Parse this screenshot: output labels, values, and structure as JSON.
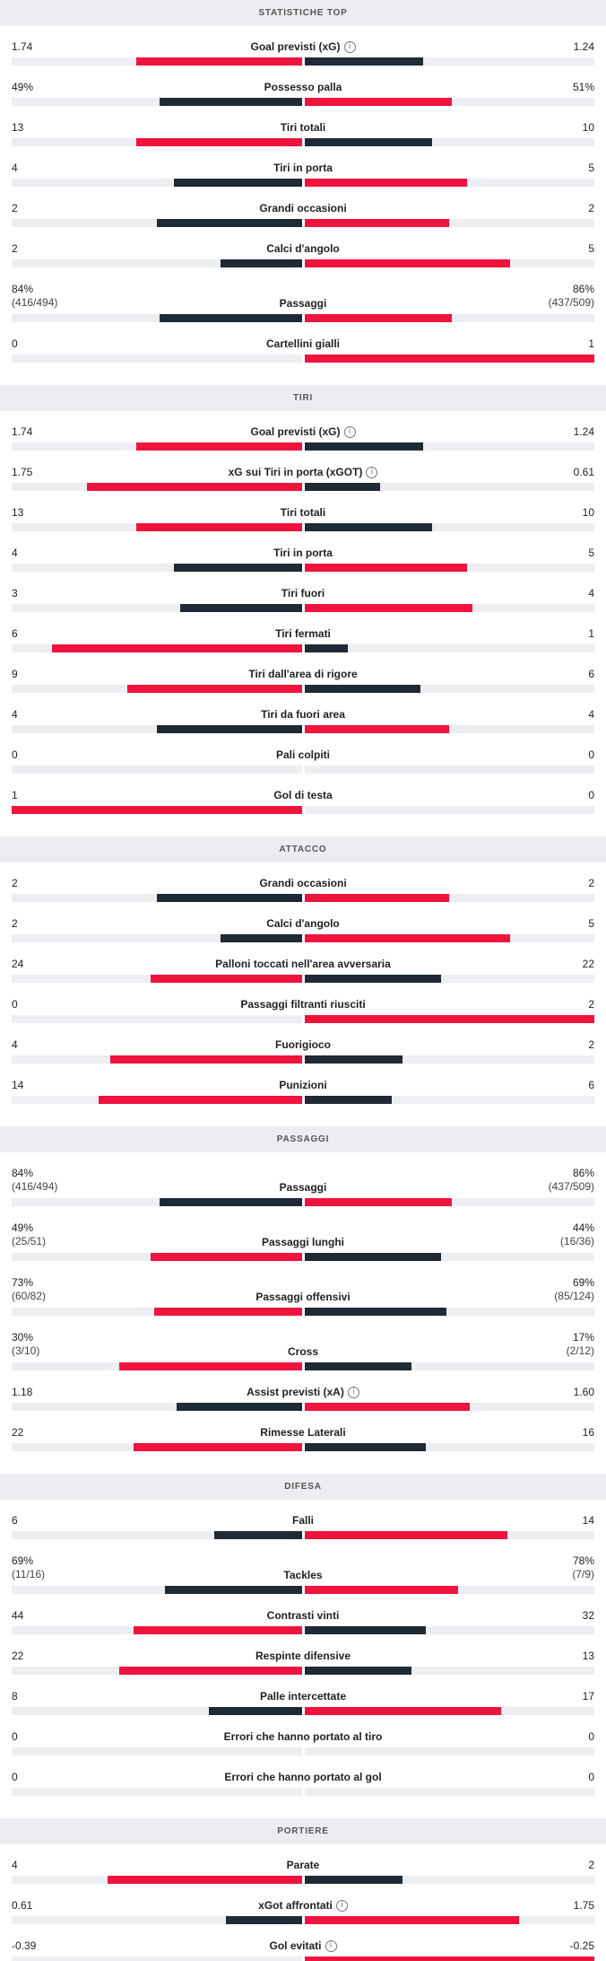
{
  "colors": {
    "home_accent": "#f0133d",
    "away_accent": "#1f2a36",
    "track": "#edeef1"
  },
  "sections": [
    {
      "title": "STATISTICHE TOP",
      "rows": [
        {
          "label": "Goal previsti (xG)",
          "info": true,
          "home": "1.74",
          "away": "1.24",
          "hf": 0.57,
          "af": 0.41,
          "hw": "home"
        },
        {
          "label": "Possesso palla",
          "home": "49%",
          "away": "51%",
          "hf": 0.49,
          "af": 0.51,
          "hw": "away"
        },
        {
          "label": "Tiri totali",
          "home": "13",
          "away": "10",
          "hf": 0.57,
          "af": 0.44,
          "hw": "home"
        },
        {
          "label": "Tiri in porta",
          "home": "4",
          "away": "5",
          "hf": 0.44,
          "af": 0.56,
          "hw": "away"
        },
        {
          "label": "Grandi occasioni",
          "home": "2",
          "away": "2",
          "hf": 0.5,
          "af": 0.5,
          "hw": "none"
        },
        {
          "label": "Calci d'angolo",
          "home": "2",
          "away": "5",
          "hf": 0.28,
          "af": 0.71,
          "hw": "away"
        },
        {
          "label": "Passaggi",
          "home": "84%",
          "home_sub": "(416/494)",
          "away": "86%",
          "away_sub": "(437/509)",
          "hf": 0.49,
          "af": 0.51,
          "hw": "away"
        },
        {
          "label": "Cartellini gialli",
          "home": "0",
          "away": "1",
          "hf": 0,
          "af": 1,
          "hw": "away"
        }
      ]
    },
    {
      "title": "TIRI",
      "rows": [
        {
          "label": "Goal previsti (xG)",
          "info": true,
          "home": "1.74",
          "away": "1.24",
          "hf": 0.57,
          "af": 0.41,
          "hw": "home"
        },
        {
          "label": "xG sui Tiri in porta (xGOT)",
          "info": true,
          "home": "1.75",
          "away": "0.61",
          "hf": 0.74,
          "af": 0.26,
          "hw": "home"
        },
        {
          "label": "Tiri totali",
          "home": "13",
          "away": "10",
          "hf": 0.57,
          "af": 0.44,
          "hw": "home"
        },
        {
          "label": "Tiri in porta",
          "home": "4",
          "away": "5",
          "hf": 0.44,
          "af": 0.56,
          "hw": "away"
        },
        {
          "label": "Tiri fuori",
          "home": "3",
          "away": "4",
          "hf": 0.42,
          "af": 0.58,
          "hw": "away"
        },
        {
          "label": "Tiri fermati",
          "home": "6",
          "away": "1",
          "hf": 0.86,
          "af": 0.15,
          "hw": "home"
        },
        {
          "label": "Tiri dall'area di rigore",
          "home": "9",
          "away": "6",
          "hf": 0.6,
          "af": 0.4,
          "hw": "home"
        },
        {
          "label": "Tiri da fuori area",
          "home": "4",
          "away": "4",
          "hf": 0.5,
          "af": 0.5,
          "hw": "none"
        },
        {
          "label": "Pali colpiti",
          "home": "0",
          "away": "0",
          "hf": 0,
          "af": 0,
          "hw": "none"
        },
        {
          "label": "Gol di testa",
          "home": "1",
          "away": "0",
          "hf": 1,
          "af": 0,
          "hw": "home"
        }
      ]
    },
    {
      "title": "ATTACCO",
      "rows": [
        {
          "label": "Grandi occasioni",
          "home": "2",
          "away": "2",
          "hf": 0.5,
          "af": 0.5,
          "hw": "none"
        },
        {
          "label": "Calci d'angolo",
          "home": "2",
          "away": "5",
          "hf": 0.28,
          "af": 0.71,
          "hw": "away"
        },
        {
          "label": "Palloni toccati nell'area avversaria",
          "home": "24",
          "away": "22",
          "hf": 0.52,
          "af": 0.47,
          "hw": "home"
        },
        {
          "label": "Passaggi filtranti riusciti",
          "home": "0",
          "away": "2",
          "hf": 0,
          "af": 1,
          "hw": "away"
        },
        {
          "label": "Fuorigioco",
          "home": "4",
          "away": "2",
          "hf": 0.66,
          "af": 0.34,
          "hw": "home"
        },
        {
          "label": "Punizioni",
          "home": "14",
          "away": "6",
          "hf": 0.7,
          "af": 0.3,
          "hw": "home"
        }
      ]
    },
    {
      "title": "PASSAGGI",
      "rows": [
        {
          "label": "Passaggi",
          "home": "84%",
          "home_sub": "(416/494)",
          "away": "86%",
          "away_sub": "(437/509)",
          "hf": 0.49,
          "af": 0.51,
          "hw": "away"
        },
        {
          "label": "Passaggi lunghi",
          "home": "49%",
          "home_sub": "(25/51)",
          "away": "44%",
          "away_sub": "(16/36)",
          "hf": 0.52,
          "af": 0.47,
          "hw": "home"
        },
        {
          "label": "Passaggi offensivi",
          "home": "73%",
          "home_sub": "(60/82)",
          "away": "69%",
          "away_sub": "(85/124)",
          "hf": 0.51,
          "af": 0.49,
          "hw": "home"
        },
        {
          "label": "Cross",
          "home": "30%",
          "home_sub": "(3/10)",
          "away": "17%",
          "away_sub": "(2/12)",
          "hf": 0.63,
          "af": 0.37,
          "hw": "home"
        },
        {
          "label": "Assist previsti (xA)",
          "info": true,
          "home": "1.18",
          "away": "1.60",
          "hf": 0.43,
          "af": 0.57,
          "hw": "away"
        },
        {
          "label": "Rimesse Laterali",
          "home": "22",
          "away": "16",
          "hf": 0.58,
          "af": 0.42,
          "hw": "home"
        }
      ]
    },
    {
      "title": "DIFESA",
      "rows": [
        {
          "label": "Falli",
          "home": "6",
          "away": "14",
          "hf": 0.3,
          "af": 0.7,
          "hw": "away"
        },
        {
          "label": "Tackles",
          "home": "69%",
          "home_sub": "(11/16)",
          "away": "78%",
          "away_sub": "(7/9)",
          "hf": 0.47,
          "af": 0.53,
          "hw": "away"
        },
        {
          "label": "Contrasti vinti",
          "home": "44",
          "away": "32",
          "hf": 0.58,
          "af": 0.42,
          "hw": "home"
        },
        {
          "label": "Respinte difensive",
          "home": "22",
          "away": "13",
          "hf": 0.63,
          "af": 0.37,
          "hw": "home"
        },
        {
          "label": "Palle intercettate",
          "home": "8",
          "away": "17",
          "hf": 0.32,
          "af": 0.68,
          "hw": "away"
        },
        {
          "label": "Errori che hanno portato al tiro",
          "home": "0",
          "away": "0",
          "hf": 0,
          "af": 0,
          "hw": "none"
        },
        {
          "label": "Errori che hanno portato al gol",
          "home": "0",
          "away": "0",
          "hf": 0,
          "af": 0,
          "hw": "none"
        }
      ]
    },
    {
      "title": "PORTIERE",
      "rows": [
        {
          "label": "Parate",
          "home": "4",
          "away": "2",
          "hf": 0.67,
          "af": 0.34,
          "hw": "home"
        },
        {
          "label": "xGot affrontati",
          "info": true,
          "home": "0.61",
          "away": "1.75",
          "hf": 0.26,
          "af": 0.74,
          "hw": "away"
        },
        {
          "label": "Gol evitati",
          "info": true,
          "home": "-0.39",
          "away": "-0.25",
          "hf": 0,
          "af": 1,
          "hw": "away"
        }
      ]
    }
  ]
}
